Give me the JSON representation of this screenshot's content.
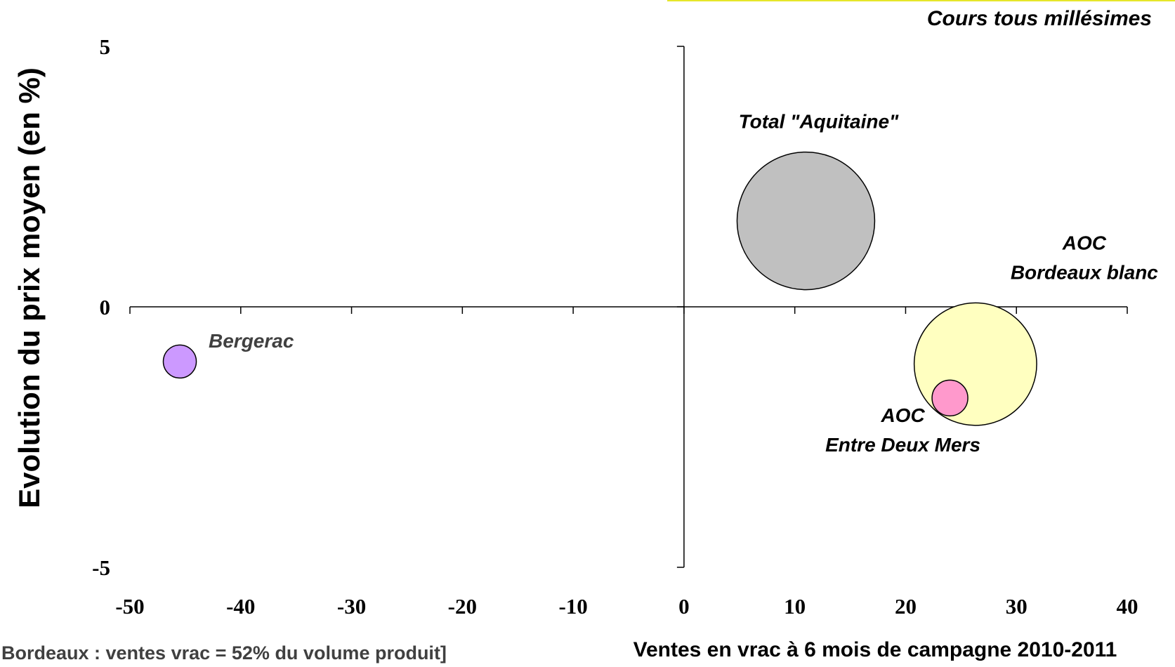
{
  "chart_data": {
    "type": "scatter",
    "subtitle": "Cours tous millésimes",
    "xlabel": "Ventes en vrac à 6 mois de campagne 2010-2011",
    "ylabel": "Evolution du prix moyen (en %)",
    "xlim": [
      -50,
      40
    ],
    "ylim": [
      -5,
      5
    ],
    "x_ticks": [
      "-50",
      "-40",
      "-30",
      "-20",
      "-10",
      "0",
      "10",
      "20",
      "30",
      "40"
    ],
    "y_ticks": [
      "5",
      "0",
      "-5"
    ],
    "grid": false,
    "series": [
      {
        "label_lines": [
          "Total \"Aquitaine\""
        ],
        "x": 11,
        "y": 1.65,
        "size": 1.0,
        "color": "#c0c0c0"
      },
      {
        "label_lines": [
          "AOC",
          "Bordeaux blanc"
        ],
        "x": 26.3,
        "y": -1.1,
        "size": 0.89,
        "color": "#ffffc0"
      },
      {
        "label_lines": [
          "AOC",
          "Entre Deux Mers"
        ],
        "x": 24,
        "y": -1.75,
        "size": 0.26,
        "color": "#ff99cc"
      },
      {
        "label_lines": [
          "Bergerac"
        ],
        "x": -45.5,
        "y": -1.05,
        "size": 0.24,
        "color": "#cc99ff"
      }
    ]
  },
  "note": "Bordeaux : ventes vrac = 52% du volume produit]"
}
